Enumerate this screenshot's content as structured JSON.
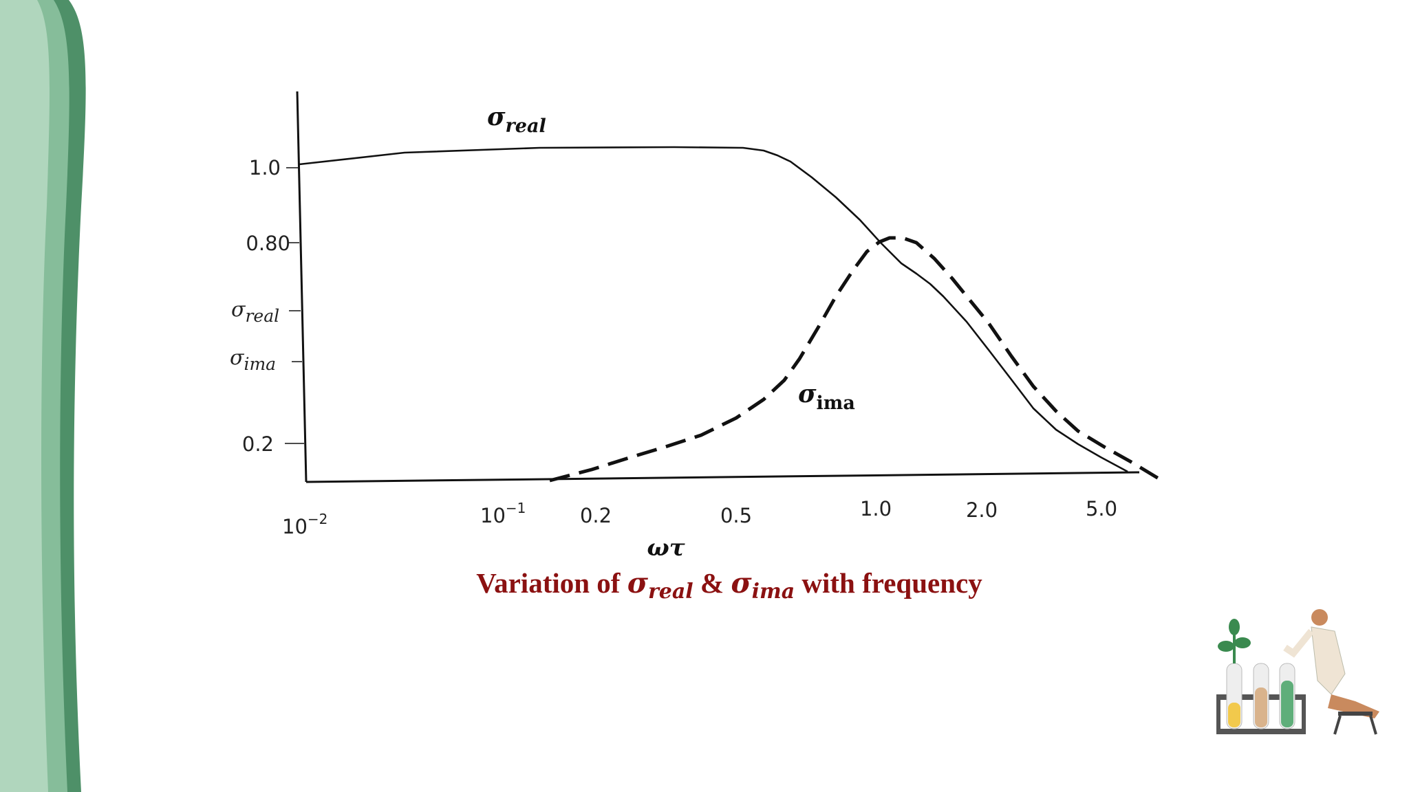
{
  "chart": {
    "curve_labels": {
      "real": {
        "symbol": "σ",
        "subscript": "real"
      },
      "ima": {
        "symbol": "σ",
        "subscript": "ima"
      }
    },
    "y_labels": [
      "1.0",
      "0.80",
      {
        "symbol": "σ",
        "subscript": "real"
      },
      {
        "symbol": "σ",
        "subscript": "ima"
      },
      "0.2"
    ],
    "x_labels": [
      {
        "base": "10",
        "exponent": "−2"
      },
      {
        "base": "10",
        "exponent": "−1"
      },
      "0.2",
      "0.5",
      "1.0",
      "2.0",
      "5.0"
    ],
    "x_axis_label": "ωτ",
    "caption": {
      "before": "Variation of ",
      "s1": "σ",
      "s1_sub": "real",
      "mid": " & ",
      "s2": "σ",
      "s2_sub": "ima",
      "after": " with frequency"
    }
  }
}
